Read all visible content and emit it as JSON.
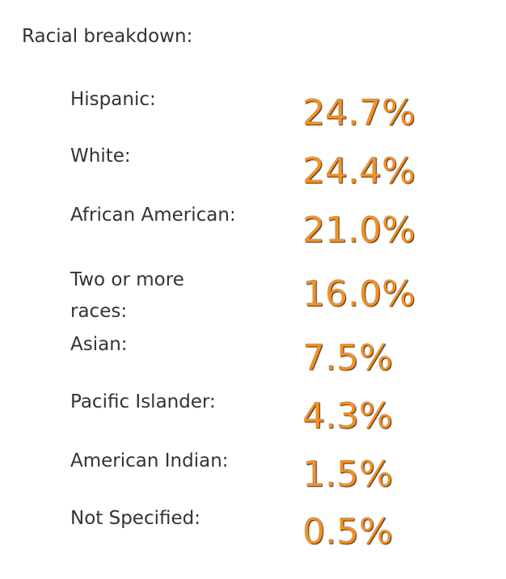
{
  "title": "Racial breakdown:",
  "rows": [
    {
      "label": "Hispanic:",
      "value": "24.7%"
    },
    {
      "label": "White:",
      "value": "24.4%"
    },
    {
      "label": "African American:",
      "value": "21.0%"
    },
    {
      "label": "Two or more races:",
      "value": "16.0%"
    },
    {
      "label": "Asian:",
      "value": "7.5%"
    },
    {
      "label": "Pacific Islander:",
      "value": "4.3%"
    },
    {
      "label": "American Indian:",
      "value": "1.5%"
    },
    {
      "label": "Not Specified:",
      "value": "0.5%"
    }
  ]
}
